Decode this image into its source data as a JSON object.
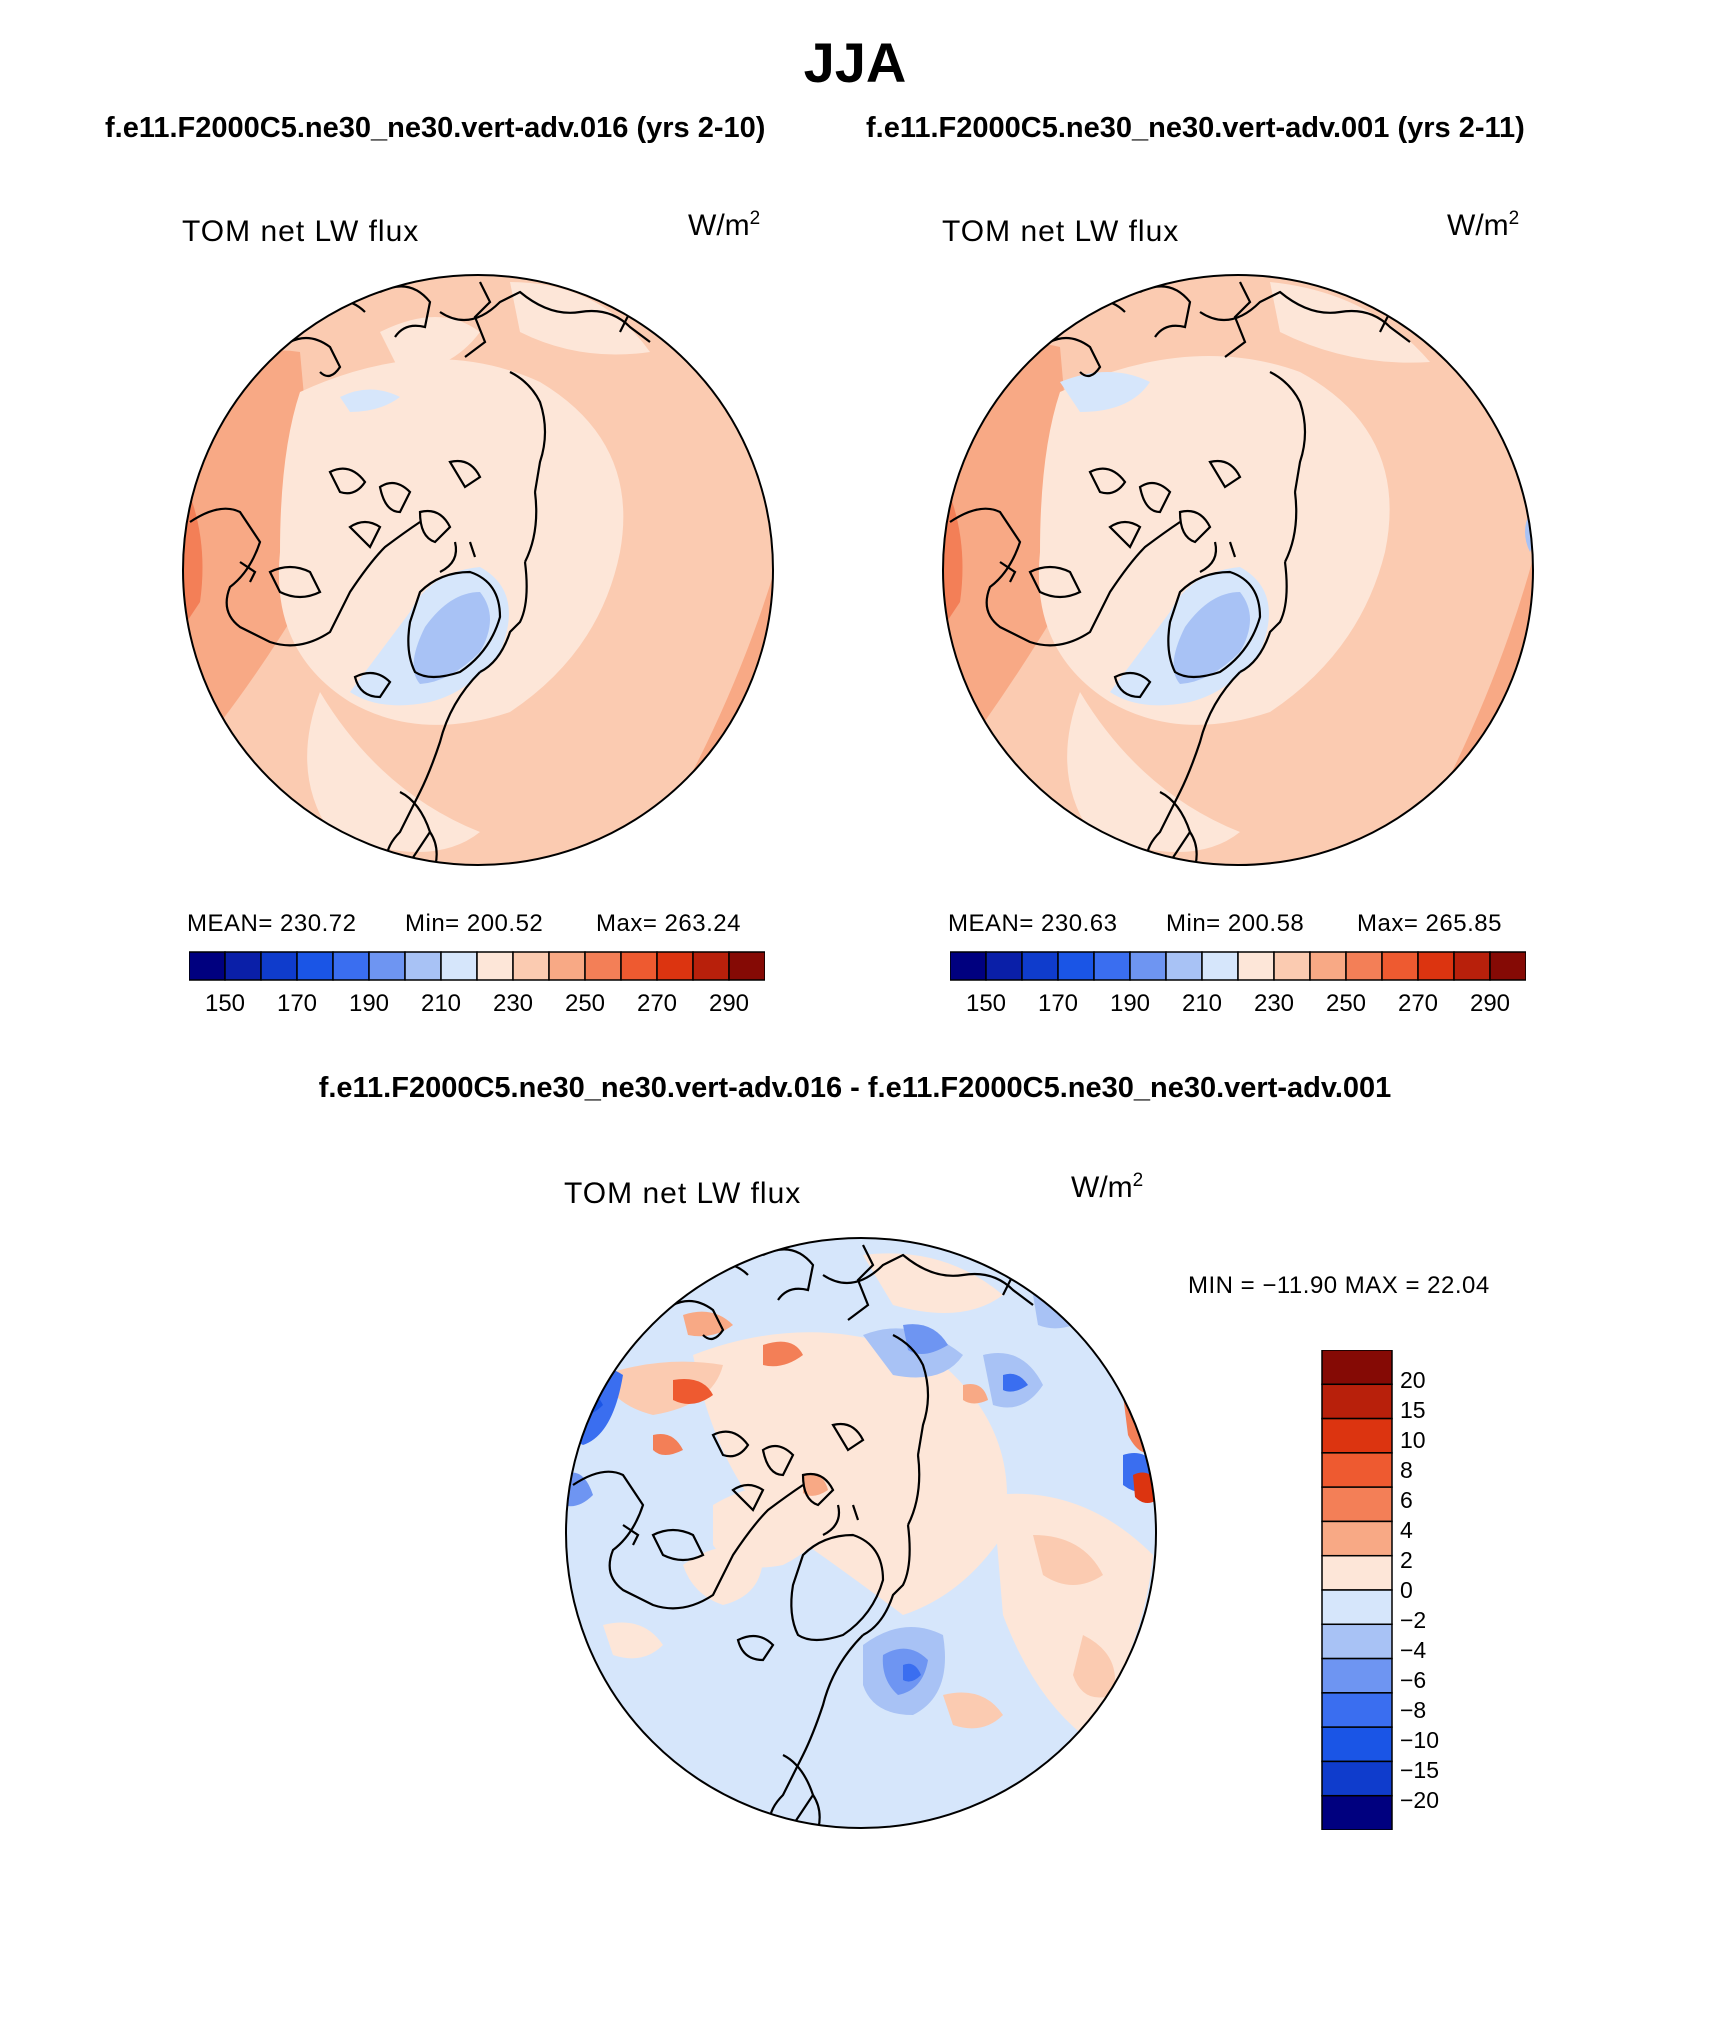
{
  "header": {
    "season": "JJA",
    "case1": "f.e11.F2000C5.ne30_ne30.vert-adv.016 (yrs 2-10)",
    "case2": "f.e11.F2000C5.ne30_ne30.vert-adv.001 (yrs 2-11)",
    "diff_title": "f.e11.F2000C5.ne30_ne30.vert-adv.016 - f.e11.F2000C5.ne30_ne30.vert-adv.001"
  },
  "panels": [
    {
      "variable": "TOM net LW flux",
      "units_base": "W/m",
      "units_exp": "2",
      "mean": "MEAN= 230.72",
      "min": "Min= 200.52",
      "max": "Max= 263.24",
      "cbar_labels": [
        "150",
        "170",
        "190",
        "210",
        "230",
        "250",
        "270",
        "290"
      ]
    },
    {
      "variable": "TOM net LW flux",
      "units_base": "W/m",
      "units_exp": "2",
      "mean": "MEAN= 230.63",
      "min": "Min= 200.58",
      "max": "Max= 265.85",
      "cbar_labels": [
        "150",
        "170",
        "190",
        "210",
        "230",
        "250",
        "270",
        "290"
      ]
    }
  ],
  "diff_panel": {
    "variable": "TOM net LW flux",
    "units_base": "W/m",
    "units_exp": "2",
    "minmax": "MIN = −11.90 MAX =   22.04",
    "cbar_labels": [
      "20",
      "15",
      "10",
      "8",
      "6",
      "4",
      "2",
      "0",
      "−2",
      "−4",
      "−6",
      "−8",
      "−10",
      "−15",
      "−20"
    ]
  },
  "colors": {
    "abs_scale": [
      "#00007f",
      "#0a1fa8",
      "#0f3ccc",
      "#1a55e6",
      "#3a6ef0",
      "#6e95f2",
      "#a8c2f5",
      "#d6e6fb",
      "#fde6d8",
      "#fbcbb1",
      "#f8a985",
      "#f37f57",
      "#ee5a30",
      "#dc3410",
      "#b8200b",
      "#850a05"
    ],
    "diff_scale": [
      "#850a05",
      "#b8200b",
      "#dc3410",
      "#ee5a30",
      "#f37f57",
      "#f8a985",
      "#fde6d8",
      "#d6e6fb",
      "#a8c2f5",
      "#6e95f2",
      "#3a6ef0",
      "#1a55e6",
      "#0f3ccc",
      "#00007f"
    ]
  }
}
